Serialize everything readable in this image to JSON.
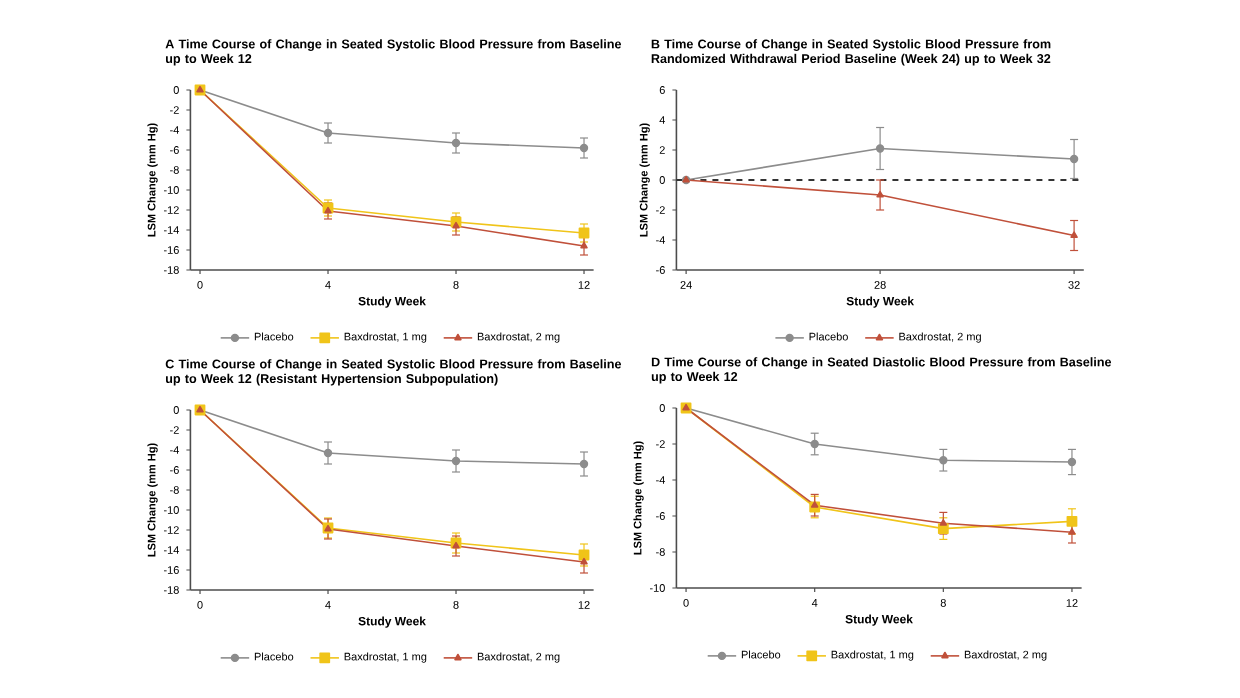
{
  "chart_data": [
    {
      "type": "line",
      "title": "A Time Course of Change in Seated Systolic Blood Pressure from Baseline up to Week 12",
      "xlabel": "Study Week",
      "ylabel": "LSM Change (mm Hg)",
      "x": [
        0,
        4,
        8,
        12
      ],
      "xlim": [
        -0.3,
        12.3
      ],
      "xticks": [
        0,
        4,
        8,
        12
      ],
      "ylim": [
        -18,
        0
      ],
      "yticks": [
        -18,
        -16,
        -14,
        -12,
        -10,
        -8,
        -6,
        -4,
        -2,
        0
      ],
      "legend": "bottom",
      "series": [
        {
          "name": "Placebo",
          "color": "#8c8c8c",
          "marker": "circle",
          "values": [
            0,
            -4.3,
            -5.3,
            -5.8
          ],
          "errors": [
            null,
            1.0,
            1.0,
            1.0
          ]
        },
        {
          "name": "Baxdrostat, 1 mg",
          "color": "#f0c419",
          "marker": "square",
          "values": [
            0,
            -11.8,
            -13.2,
            -14.3
          ],
          "errors": [
            null,
            0.8,
            0.9,
            0.9
          ]
        },
        {
          "name": "Baxdrostat, 2 mg",
          "color": "#c0503a",
          "marker": "triangle",
          "values": [
            0,
            -12.1,
            -13.6,
            -15.6
          ],
          "errors": [
            null,
            0.8,
            0.9,
            0.9
          ]
        }
      ]
    },
    {
      "type": "line",
      "title": "B Time Course of Change in Seated Systolic Blood Pressure from Randomized Withdrawal Period Baseline (Week 24) up to Week 32",
      "xlabel": "Study Week",
      "ylabel": "LSM Change (mm Hg)",
      "x": [
        24,
        28,
        32
      ],
      "xlim": [
        23.8,
        32.2
      ],
      "xticks": [
        24,
        28,
        32
      ],
      "ylim": [
        -6,
        6
      ],
      "yticks": [
        -6,
        -4,
        -2,
        0,
        2,
        4,
        6
      ],
      "legend": "bottom",
      "ref_lines": [
        {
          "axis": "y",
          "value": 0,
          "color": "#333333",
          "line_style": "dashed"
        }
      ],
      "series": [
        {
          "name": "Placebo",
          "color": "#8c8c8c",
          "marker": "circle",
          "values": [
            0,
            2.1,
            1.4
          ],
          "errors": [
            null,
            1.4,
            1.3
          ]
        },
        {
          "name": "Baxdrostat, 2 mg",
          "color": "#c0503a",
          "marker": "triangle",
          "values": [
            0,
            -1.0,
            -3.7
          ],
          "errors": [
            null,
            1.0,
            1.0
          ]
        }
      ]
    },
    {
      "type": "line",
      "title": "C Time Course of Change in Seated Systolic Blood Pressure from Baseline up to Week 12 (Resistant Hypertension Subpopulation)",
      "xlabel": "Study Week",
      "ylabel": "LSM Change (mm Hg)",
      "x": [
        0,
        4,
        8,
        12
      ],
      "xlim": [
        -0.3,
        12.3
      ],
      "xticks": [
        0,
        4,
        8,
        12
      ],
      "ylim": [
        -18,
        0
      ],
      "yticks": [
        -18,
        -16,
        -14,
        -12,
        -10,
        -8,
        -6,
        -4,
        -2,
        0
      ],
      "legend": "bottom",
      "series": [
        {
          "name": "Placebo",
          "color": "#8c8c8c",
          "marker": "circle",
          "values": [
            0,
            -4.3,
            -5.1,
            -5.4
          ],
          "errors": [
            null,
            1.1,
            1.1,
            1.2
          ]
        },
        {
          "name": "Baxdrostat, 1 mg",
          "color": "#f0c419",
          "marker": "square",
          "values": [
            0,
            -11.8,
            -13.3,
            -14.5
          ],
          "errors": [
            null,
            1.0,
            1.0,
            1.1
          ]
        },
        {
          "name": "Baxdrostat, 2 mg",
          "color": "#c0503a",
          "marker": "triangle",
          "values": [
            0,
            -11.9,
            -13.6,
            -15.2
          ],
          "errors": [
            null,
            1.0,
            1.0,
            1.1
          ]
        }
      ]
    },
    {
      "type": "line",
      "title": "D Time Course of Change in Seated Diastolic Blood Pressure from Baseline up to Week 12",
      "xlabel": "Study Week",
      "ylabel": "LSM Change (mm Hg)",
      "x": [
        0,
        4,
        8,
        12
      ],
      "xlim": [
        -0.3,
        12.3
      ],
      "xticks": [
        0,
        4,
        8,
        12
      ],
      "ylim": [
        -10,
        0
      ],
      "yticks": [
        -10,
        -8,
        -6,
        -4,
        -2,
        0
      ],
      "legend": "bottom",
      "series": [
        {
          "name": "Placebo",
          "color": "#8c8c8c",
          "marker": "circle",
          "values": [
            0,
            -2.0,
            -2.9,
            -3.0
          ],
          "errors": [
            null,
            0.6,
            0.6,
            0.7
          ]
        },
        {
          "name": "Baxdrostat, 1 mg",
          "color": "#f0c419",
          "marker": "square",
          "values": [
            0,
            -5.5,
            -6.7,
            -6.3
          ],
          "errors": [
            null,
            0.6,
            0.6,
            0.7
          ]
        },
        {
          "name": "Baxdrostat, 2 mg",
          "color": "#c0503a",
          "marker": "triangle",
          "values": [
            0,
            -5.4,
            -6.4,
            -6.9
          ],
          "errors": [
            null,
            0.6,
            0.6,
            0.6
          ]
        }
      ]
    }
  ]
}
